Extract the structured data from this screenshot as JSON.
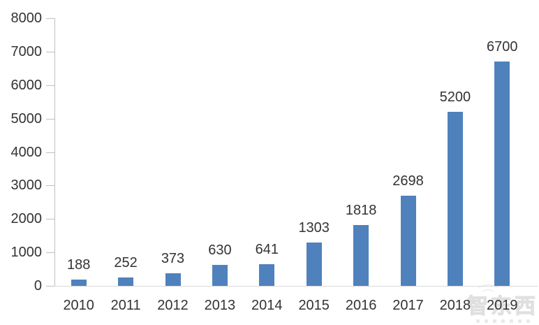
{
  "chart_data": {
    "type": "bar",
    "title": "",
    "xlabel": "",
    "ylabel": "",
    "categories": [
      "2010",
      "2011",
      "2012",
      "2013",
      "2014",
      "2015",
      "2016",
      "2017",
      "2018",
      "2019"
    ],
    "values": [
      188,
      252,
      373,
      630,
      641,
      1303,
      1818,
      2698,
      5200,
      6700
    ],
    "data_labels": [
      "188",
      "252",
      "373",
      "630",
      "641",
      "1303",
      "1818",
      "2698",
      "5200",
      "6700"
    ],
    "ylim": [
      0,
      8000
    ],
    "yticks": [
      0,
      1000,
      2000,
      3000,
      4000,
      5000,
      6000,
      7000,
      8000
    ],
    "grid": false,
    "legend": "none",
    "bar_color": "#4F81BD",
    "axis_color": "#BFBFBF",
    "baseline_color": "#D9D9D9",
    "text_color": "#333333"
  },
  "watermark": {
    "text": "智东西"
  }
}
